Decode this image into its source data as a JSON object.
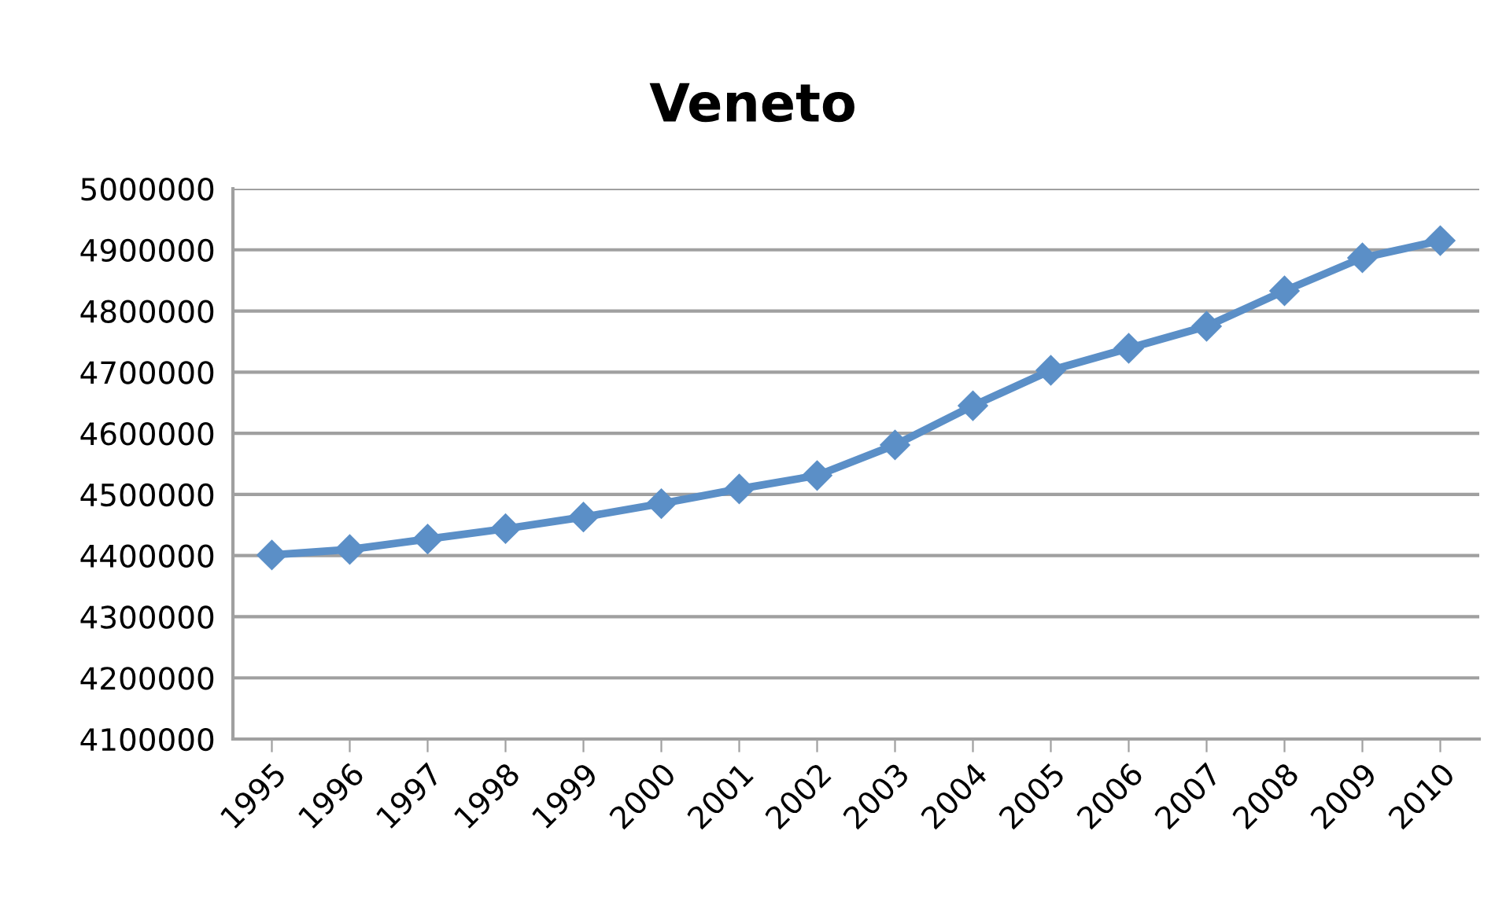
{
  "chart_data": {
    "type": "line",
    "title": "Veneto",
    "categories": [
      "1995",
      "1996",
      "1997",
      "1998",
      "1999",
      "2000",
      "2001",
      "2002",
      "2003",
      "2004",
      "2005",
      "2006",
      "2007",
      "2008",
      "2009",
      "2010"
    ],
    "series": [
      {
        "color": "#5b8fc7",
        "values": [
          4401000,
          4410000,
          4427000,
          4444000,
          4463000,
          4485000,
          4509000,
          4531000,
          4581000,
          4645000,
          4703000,
          4739000,
          4775000,
          4833000,
          4887000,
          4915000
        ]
      }
    ],
    "ylim": [
      4100000,
      5000000
    ],
    "yticks": [
      4100000,
      4200000,
      4300000,
      4400000,
      4500000,
      4600000,
      4700000,
      4800000,
      4900000,
      5000000
    ],
    "grid": "y",
    "marker": "diamond",
    "line_style": "solid"
  }
}
